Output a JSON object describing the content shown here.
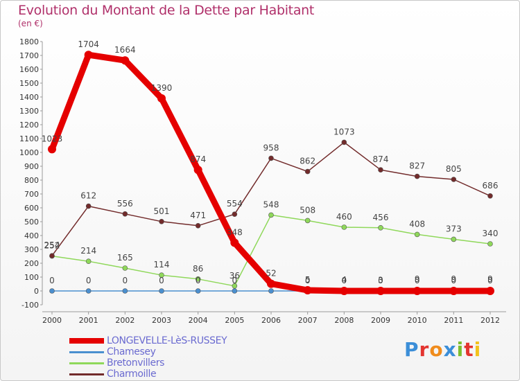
{
  "header": {
    "title": "Evolution du Montant de la Dette par Habitant",
    "subtitle": "(en €)"
  },
  "brand": {
    "letters": [
      "P",
      "r",
      "o",
      "x",
      "i",
      "t",
      "i"
    ],
    "colors": [
      "#3b8ed8",
      "#e3342f",
      "#f08c1c",
      "#3b8ed8",
      "#7cbf2f",
      "#e3342f",
      "#f3c21b"
    ]
  },
  "chart_data": {
    "type": "line",
    "title": "Evolution du Montant de la Dette par Habitant",
    "subtitle": "(en €)",
    "xlabel": "",
    "ylabel": "",
    "ylim": [
      -100,
      1800
    ],
    "yticks": [
      -100,
      0,
      100,
      200,
      300,
      400,
      500,
      600,
      700,
      800,
      900,
      1000,
      1100,
      1200,
      1300,
      1400,
      1500,
      1600,
      1700,
      1800
    ],
    "x": [
      "2000",
      "2001",
      "2002",
      "2003",
      "2004",
      "2005",
      "2006",
      "2007",
      "2008",
      "2009",
      "2010",
      "2011",
      "2012"
    ],
    "grid": false,
    "legend": "bottom-left",
    "series": [
      {
        "name": "LONGEVELLE-LèS-RUSSEY",
        "color": "#e50000",
        "values": [
          1023,
          1704,
          1664,
          1390,
          874,
          348,
          52,
          5,
          0,
          0,
          0,
          0,
          0
        ],
        "labels": [
          "1023",
          "1704",
          "1664",
          "1390",
          "874",
          "348",
          "52",
          "5",
          "0",
          "0",
          "0",
          "0",
          "0"
        ]
      },
      {
        "name": "Chamesey",
        "color": "#4a8fcf",
        "values": [
          0,
          0,
          0,
          0,
          0,
          0,
          0,
          0,
          4,
          3,
          9,
          9,
          9
        ],
        "labels": [
          "0",
          "0",
          "0",
          "0",
          "0",
          "0",
          "",
          "0",
          "4",
          "3",
          "9",
          "9",
          "9"
        ]
      },
      {
        "name": "Bretonvillers",
        "color": "#8fd85a",
        "values": [
          252,
          214,
          165,
          114,
          86,
          36,
          548,
          508,
          460,
          456,
          408,
          373,
          340
        ],
        "labels": [
          "252",
          "214",
          "165",
          "114",
          "86",
          "36",
          "548",
          "508",
          "460",
          "456",
          "408",
          "373",
          "340"
        ]
      },
      {
        "name": "Charmoille",
        "color": "#722b2b",
        "values": [
          254,
          612,
          556,
          501,
          471,
          554,
          958,
          862,
          1073,
          874,
          827,
          805,
          686
        ],
        "labels": [
          "254",
          "612",
          "556",
          "501",
          "471",
          "554",
          "958",
          "862",
          "1073",
          "874",
          "827",
          "805",
          "686"
        ]
      }
    ]
  }
}
